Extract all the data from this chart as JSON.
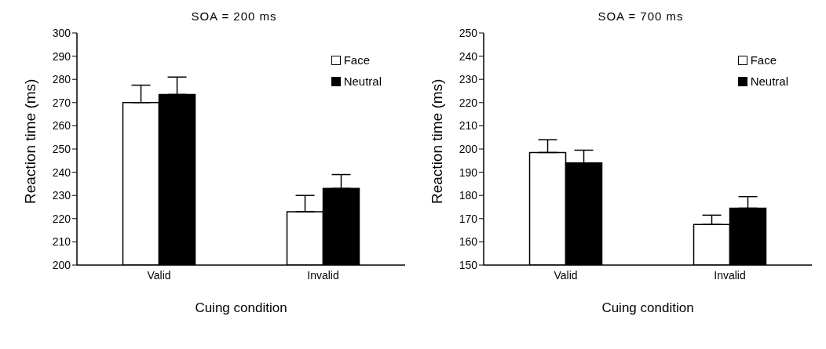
{
  "chart_data": [
    {
      "type": "bar",
      "title": "SOA = 200 ms",
      "xlabel": "Cuing condition",
      "ylabel": "Reaction time (ms)",
      "categories": [
        "Valid",
        "Invalid"
      ],
      "series": [
        {
          "name": "Face",
          "color": "#ffffff",
          "values": [
            270,
            223
          ],
          "errors": [
            [
              270,
              277.5
            ],
            [
              223,
              230
            ]
          ]
        },
        {
          "name": "Neutral",
          "color": "#000000",
          "values": [
            273.5,
            233
          ],
          "errors": [
            [
              273.5,
              281
            ],
            [
              233,
              239
            ]
          ]
        }
      ],
      "ylim": [
        200,
        300
      ],
      "yticks": [
        200,
        210,
        220,
        230,
        240,
        250,
        260,
        270,
        280,
        290,
        300
      ],
      "grid": false,
      "legend": "top right"
    },
    {
      "type": "bar",
      "title": "SOA = 700 ms",
      "xlabel": "Cuing condition",
      "ylabel": "Reaction time (ms)",
      "categories": [
        "Valid",
        "Invalid"
      ],
      "series": [
        {
          "name": "Face",
          "color": "#ffffff",
          "values": [
            198.5,
            167.5
          ],
          "errors": [
            [
              198.5,
              204
            ],
            [
              167.5,
              171.5
            ]
          ]
        },
        {
          "name": "Neutral",
          "color": "#000000",
          "values": [
            194,
            174.5
          ],
          "errors": [
            [
              194,
              199.5
            ],
            [
              174.5,
              179.5
            ]
          ]
        }
      ],
      "ylim": [
        150,
        250
      ],
      "yticks": [
        150,
        160,
        170,
        180,
        190,
        200,
        210,
        220,
        230,
        240,
        250
      ],
      "grid": false,
      "legend": "top right"
    }
  ]
}
